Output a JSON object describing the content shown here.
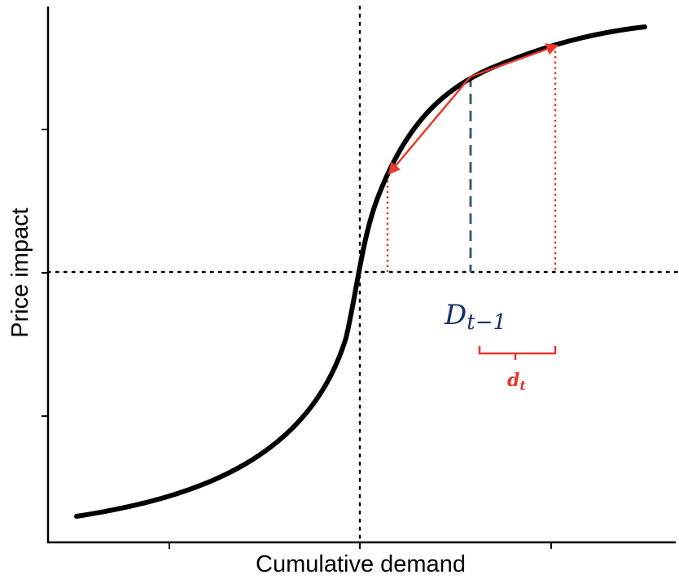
{
  "axes": {
    "xlabel": "Cumulative demand",
    "ylabel": "Price impact"
  },
  "annotations": {
    "d_prev_main": "D",
    "d_prev_sub": "t−1",
    "increment_main": "d",
    "increment_sub": "t"
  },
  "colors": {
    "curve": "#000000",
    "arrow": "#e8392c",
    "dashed": "#3d5f73",
    "label_blue": "#1a2f6b",
    "label_red": "#e8392c",
    "guides": "#000000"
  }
}
